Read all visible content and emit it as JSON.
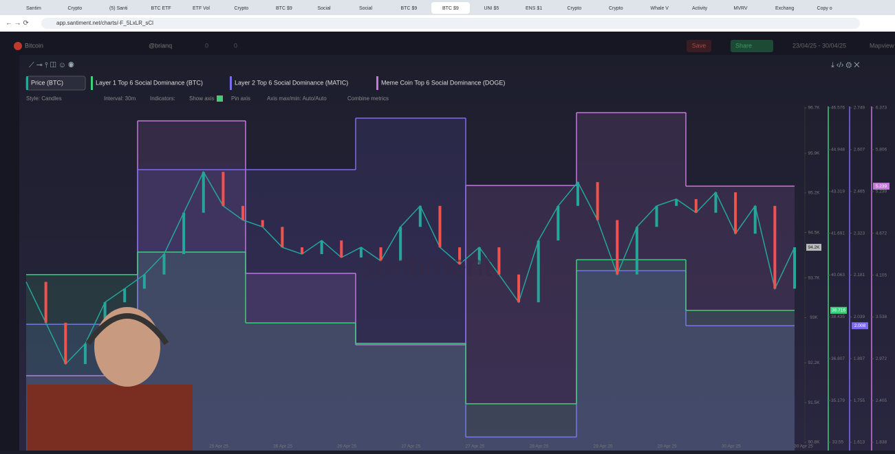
{
  "browser": {
    "tabs": [
      "Santim",
      "Crypto",
      "(5) Santi",
      "BTC ETF",
      "ETF Vol",
      "Crypto",
      "BTC $9",
      "Social",
      "Social",
      "BTC $9",
      "BTC $9",
      "UNI $5",
      "ENS $1",
      "Crypto",
      "Crypto",
      "Whale V",
      "Activity",
      "MVRV",
      "Exchang",
      "Copy o"
    ],
    "url": "app.santiment.net/charts/-F_5LxLR_sCl"
  },
  "app": {
    "asset": "Bitcoin",
    "user": "@brianq",
    "comments": "0",
    "likes": "0",
    "save": "Save",
    "share": "Share",
    "date_range": "23/04/25 - 30/04/25",
    "mapview": "Mapview"
  },
  "toolbar": {
    "style": "Style: Candles",
    "interval": "Interval: 30m",
    "indicators": "Indicators:",
    "show_axis": "Show axis",
    "pin_axis": "Pin axis",
    "axis_range": "Axis max/min: Auto/Auto",
    "combine": "Combine metrics"
  },
  "chart_data": {
    "type": "line",
    "watermark": "santiment",
    "x_labels": [
      "25 Apr 25",
      "26 Apr 25",
      "26 Apr 25",
      "27 Apr 25",
      "27 Apr 25",
      "28 Apr 25",
      "28 Apr 25",
      "29 Apr 25",
      "30 Apr 25",
      "30 Apr 25"
    ],
    "series": [
      {
        "name": "Price (BTC)",
        "color": "#26a69a",
        "axis": "y",
        "values": [
          93630,
          92910,
          92180,
          92540,
          93270,
          93510,
          93760,
          94120,
          94850,
          95570,
          94970,
          94720,
          94600,
          94240,
          94120,
          94360,
          94060,
          94240,
          94000,
          94600,
          94970,
          94240,
          93940,
          94240,
          93760,
          93270,
          94360,
          94970,
          95390,
          94720,
          93760,
          94600,
          94970,
          95090,
          94850,
          95210,
          94480,
          94970,
          93510,
          94240
        ],
        "last_label": "94.2K"
      },
      {
        "name": "Layer 1 Top 6 Social Dominance (BTC)",
        "color": "#3ecf7a",
        "axis": "y2",
        "values": [
          40.08,
          40.96,
          38.2,
          37.4,
          35.05,
          40.66,
          38.69
        ],
        "last_label": "38.716"
      },
      {
        "name": "Layer 2 Top 6 Social Dominance (MATIC)",
        "color": "#7c6cf0",
        "axis": "y3",
        "values": [
          2.014,
          2.539,
          2.539,
          2.714,
          1.631,
          2.196,
          2.009
        ],
        "last_label": "2.008"
      },
      {
        "name": "Meme Coin Top 6 Social Dominance (DOGE)",
        "color": "#c678dd",
        "axis": "y4",
        "values": [
          2.741,
          6.196,
          4.129,
          3.16,
          5.321,
          6.308,
          5.311
        ],
        "last_label": "5.239"
      }
    ],
    "ylim": [
      90800,
      96700
    ],
    "yticks": [
      {
        "value": 96700,
        "label": "96.7K"
      },
      {
        "value": 95900,
        "label": "95.9K"
      },
      {
        "value": 95200,
        "label": "95.2K"
      },
      {
        "value": 94500,
        "label": "94.5K"
      },
      {
        "value": 93700,
        "label": "93.7K"
      },
      {
        "value": 93000,
        "label": "93K"
      },
      {
        "value": 92200,
        "label": "92.2K"
      },
      {
        "value": 91500,
        "label": "91.5K"
      },
      {
        "value": 90800,
        "label": "90.8K"
      }
    ],
    "y2lim": [
      33.55,
      46.576
    ],
    "y2ticks": [
      46.576,
      44.948,
      43.319,
      41.691,
      40.063,
      38.435,
      36.807,
      35.179,
      33.55
    ],
    "y3lim": [
      1.613,
      2.749
    ],
    "y3ticks": [
      2.749,
      2.607,
      2.465,
      2.323,
      2.181,
      2.039,
      1.897,
      1.755,
      1.613
    ],
    "y4lim": [
      1.838,
      6.373
    ],
    "y4ticks": [
      6.373,
      5.806,
      5.239,
      4.672,
      4.105,
      3.538,
      2.972,
      2.405,
      1.838
    ]
  }
}
